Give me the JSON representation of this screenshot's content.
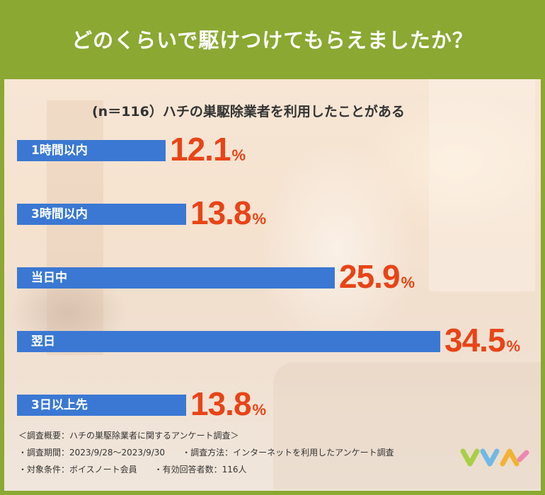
{
  "header": {
    "title": "どのくらいで駆けつけてもらえましたか？"
  },
  "chart_data": {
    "type": "bar",
    "orientation": "horizontal",
    "title": "(n＝116）ハチの巣駆除業者を利用したことがある",
    "categories": [
      "1時間以内",
      "3時間以内",
      "当日中",
      "翌日",
      "3日以上先"
    ],
    "values": [
      12.1,
      13.8,
      25.9,
      34.5,
      13.8
    ],
    "unit": "%",
    "xlim": [
      0,
      35.5
    ],
    "bar_color": "#3a78d3",
    "value_color": "#e84417"
  },
  "notes": {
    "heading": "＜調査概要：ハチの巣駆除業者に関するアンケート調査＞",
    "period": "・調査期間：2023/9/28〜2023/9/30",
    "method": "・調査方法：インターネットを利用したアンケート調査",
    "target": "・対象条件：ボイスノート会員",
    "respondents": "・有効回答者数：116人"
  },
  "colors": {
    "header_bg": "#8aa832"
  }
}
